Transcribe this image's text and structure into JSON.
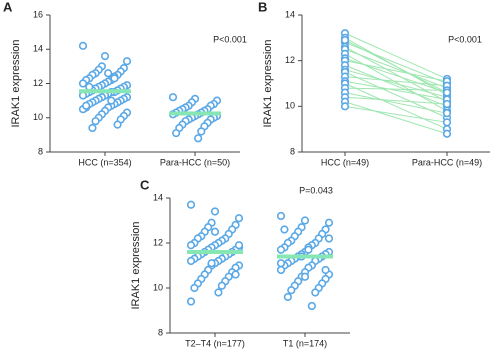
{
  "chart_data": [
    {
      "type": "strip",
      "label": "A",
      "ylabel": "IRAK1 expression",
      "annotation": "P<0.001",
      "categories": [
        "HCC (n=354)",
        "Para-HCC (n=50)"
      ],
      "groups": [
        {
          "values": [
            14.2,
            13.6,
            13.3,
            13.0,
            12.9,
            12.8,
            12.7,
            12.6,
            12.5,
            12.5,
            12.4,
            12.3,
            12.2,
            12.2,
            12.1,
            12.0,
            12.0,
            11.9,
            11.9,
            11.8,
            11.8,
            11.7,
            11.7,
            11.6,
            11.6,
            11.5,
            11.5,
            11.5,
            11.4,
            11.4,
            11.3,
            11.3,
            11.2,
            11.2,
            11.1,
            11.1,
            11.0,
            11.0,
            10.9,
            10.9,
            10.8,
            10.8,
            10.7,
            10.6,
            10.6,
            10.5,
            10.4,
            10.3,
            10.2,
            10.1,
            10.0,
            9.9,
            9.8,
            9.6,
            9.4,
            12.3,
            11.8,
            11.0,
            10.7,
            12.6
          ],
          "mean": 11.55
        },
        {
          "values": [
            11.2,
            11.1,
            11.0,
            10.9,
            10.8,
            10.7,
            10.7,
            10.6,
            10.5,
            10.5,
            10.4,
            10.4,
            10.3,
            10.3,
            10.2,
            10.2,
            10.1,
            10.1,
            10.0,
            10.0,
            9.9,
            9.9,
            9.8,
            9.7,
            9.6,
            9.5,
            9.4,
            9.2,
            9.1,
            8.8
          ],
          "mean": 10.25
        }
      ],
      "color": "#5aa8e6",
      "mean_color": "#86e6b4",
      "ylim": [
        8,
        16
      ],
      "yticks": [
        8,
        10,
        12,
        14,
        16
      ]
    },
    {
      "type": "paired",
      "label": "B",
      "ylabel": "IRAK1 expression",
      "annotation": "P<0.001",
      "categories": [
        "HCC (n=49)",
        "Para-HCC (n=49)"
      ],
      "groups": [
        {
          "values": [
            13.2,
            13.0,
            12.8,
            12.6,
            12.5,
            12.3,
            12.1,
            12.0,
            11.8,
            11.6,
            11.5,
            11.3,
            11.1,
            11.0,
            10.8,
            10.6,
            10.4,
            10.2,
            10.0,
            12.9
          ]
        },
        {
          "values": [
            11.2,
            10.5,
            11.0,
            10.2,
            10.8,
            9.8,
            10.6,
            11.1,
            10.0,
            10.4,
            9.5,
            10.9,
            10.3,
            9.0,
            10.7,
            9.7,
            10.1,
            8.8,
            9.3,
            10.6
          ]
        }
      ],
      "color": "#5aa8e6",
      "line_color": "#9ee6b0",
      "ylim": [
        8,
        14
      ],
      "yticks": [
        8,
        10,
        12,
        14
      ]
    },
    {
      "type": "strip",
      "label": "C",
      "ylabel": "IRAK1 expression",
      "annotation": "P=0.043",
      "categories": [
        "T2–T4 (n=177)",
        "T1 (n=174)"
      ],
      "groups": [
        {
          "values": [
            13.7,
            13.4,
            13.1,
            12.9,
            12.8,
            12.7,
            12.6,
            12.5,
            12.4,
            12.3,
            12.2,
            12.2,
            12.1,
            12.0,
            12.0,
            11.9,
            11.9,
            11.8,
            11.8,
            11.7,
            11.7,
            11.6,
            11.6,
            11.5,
            11.5,
            11.4,
            11.4,
            11.3,
            11.3,
            11.2,
            11.2,
            11.1,
            11.0,
            11.0,
            10.9,
            10.8,
            10.7,
            10.6,
            10.5,
            10.4,
            10.3,
            10.2,
            10.1,
            10.0,
            9.8,
            9.4,
            12.5,
            11.9,
            11.1,
            10.6
          ],
          "mean": 11.6
        },
        {
          "values": [
            13.2,
            13.0,
            12.9,
            12.7,
            12.6,
            12.5,
            12.4,
            12.3,
            12.2,
            12.1,
            12.0,
            12.0,
            11.9,
            11.8,
            11.8,
            11.7,
            11.6,
            11.6,
            11.5,
            11.5,
            11.4,
            11.4,
            11.3,
            11.3,
            11.2,
            11.2,
            11.1,
            11.0,
            11.0,
            10.9,
            10.8,
            10.7,
            10.6,
            10.5,
            10.4,
            10.3,
            10.2,
            10.1,
            10.0,
            9.9,
            9.8,
            9.6,
            9.2,
            12.6,
            11.7,
            11.1,
            10.5,
            12.2,
            11.4,
            10.8
          ],
          "mean": 11.4
        }
      ],
      "color": "#5aa8e6",
      "mean_color": "#86e6b4",
      "ylim": [
        8,
        14
      ],
      "yticks": [
        8,
        10,
        12,
        14
      ]
    }
  ]
}
